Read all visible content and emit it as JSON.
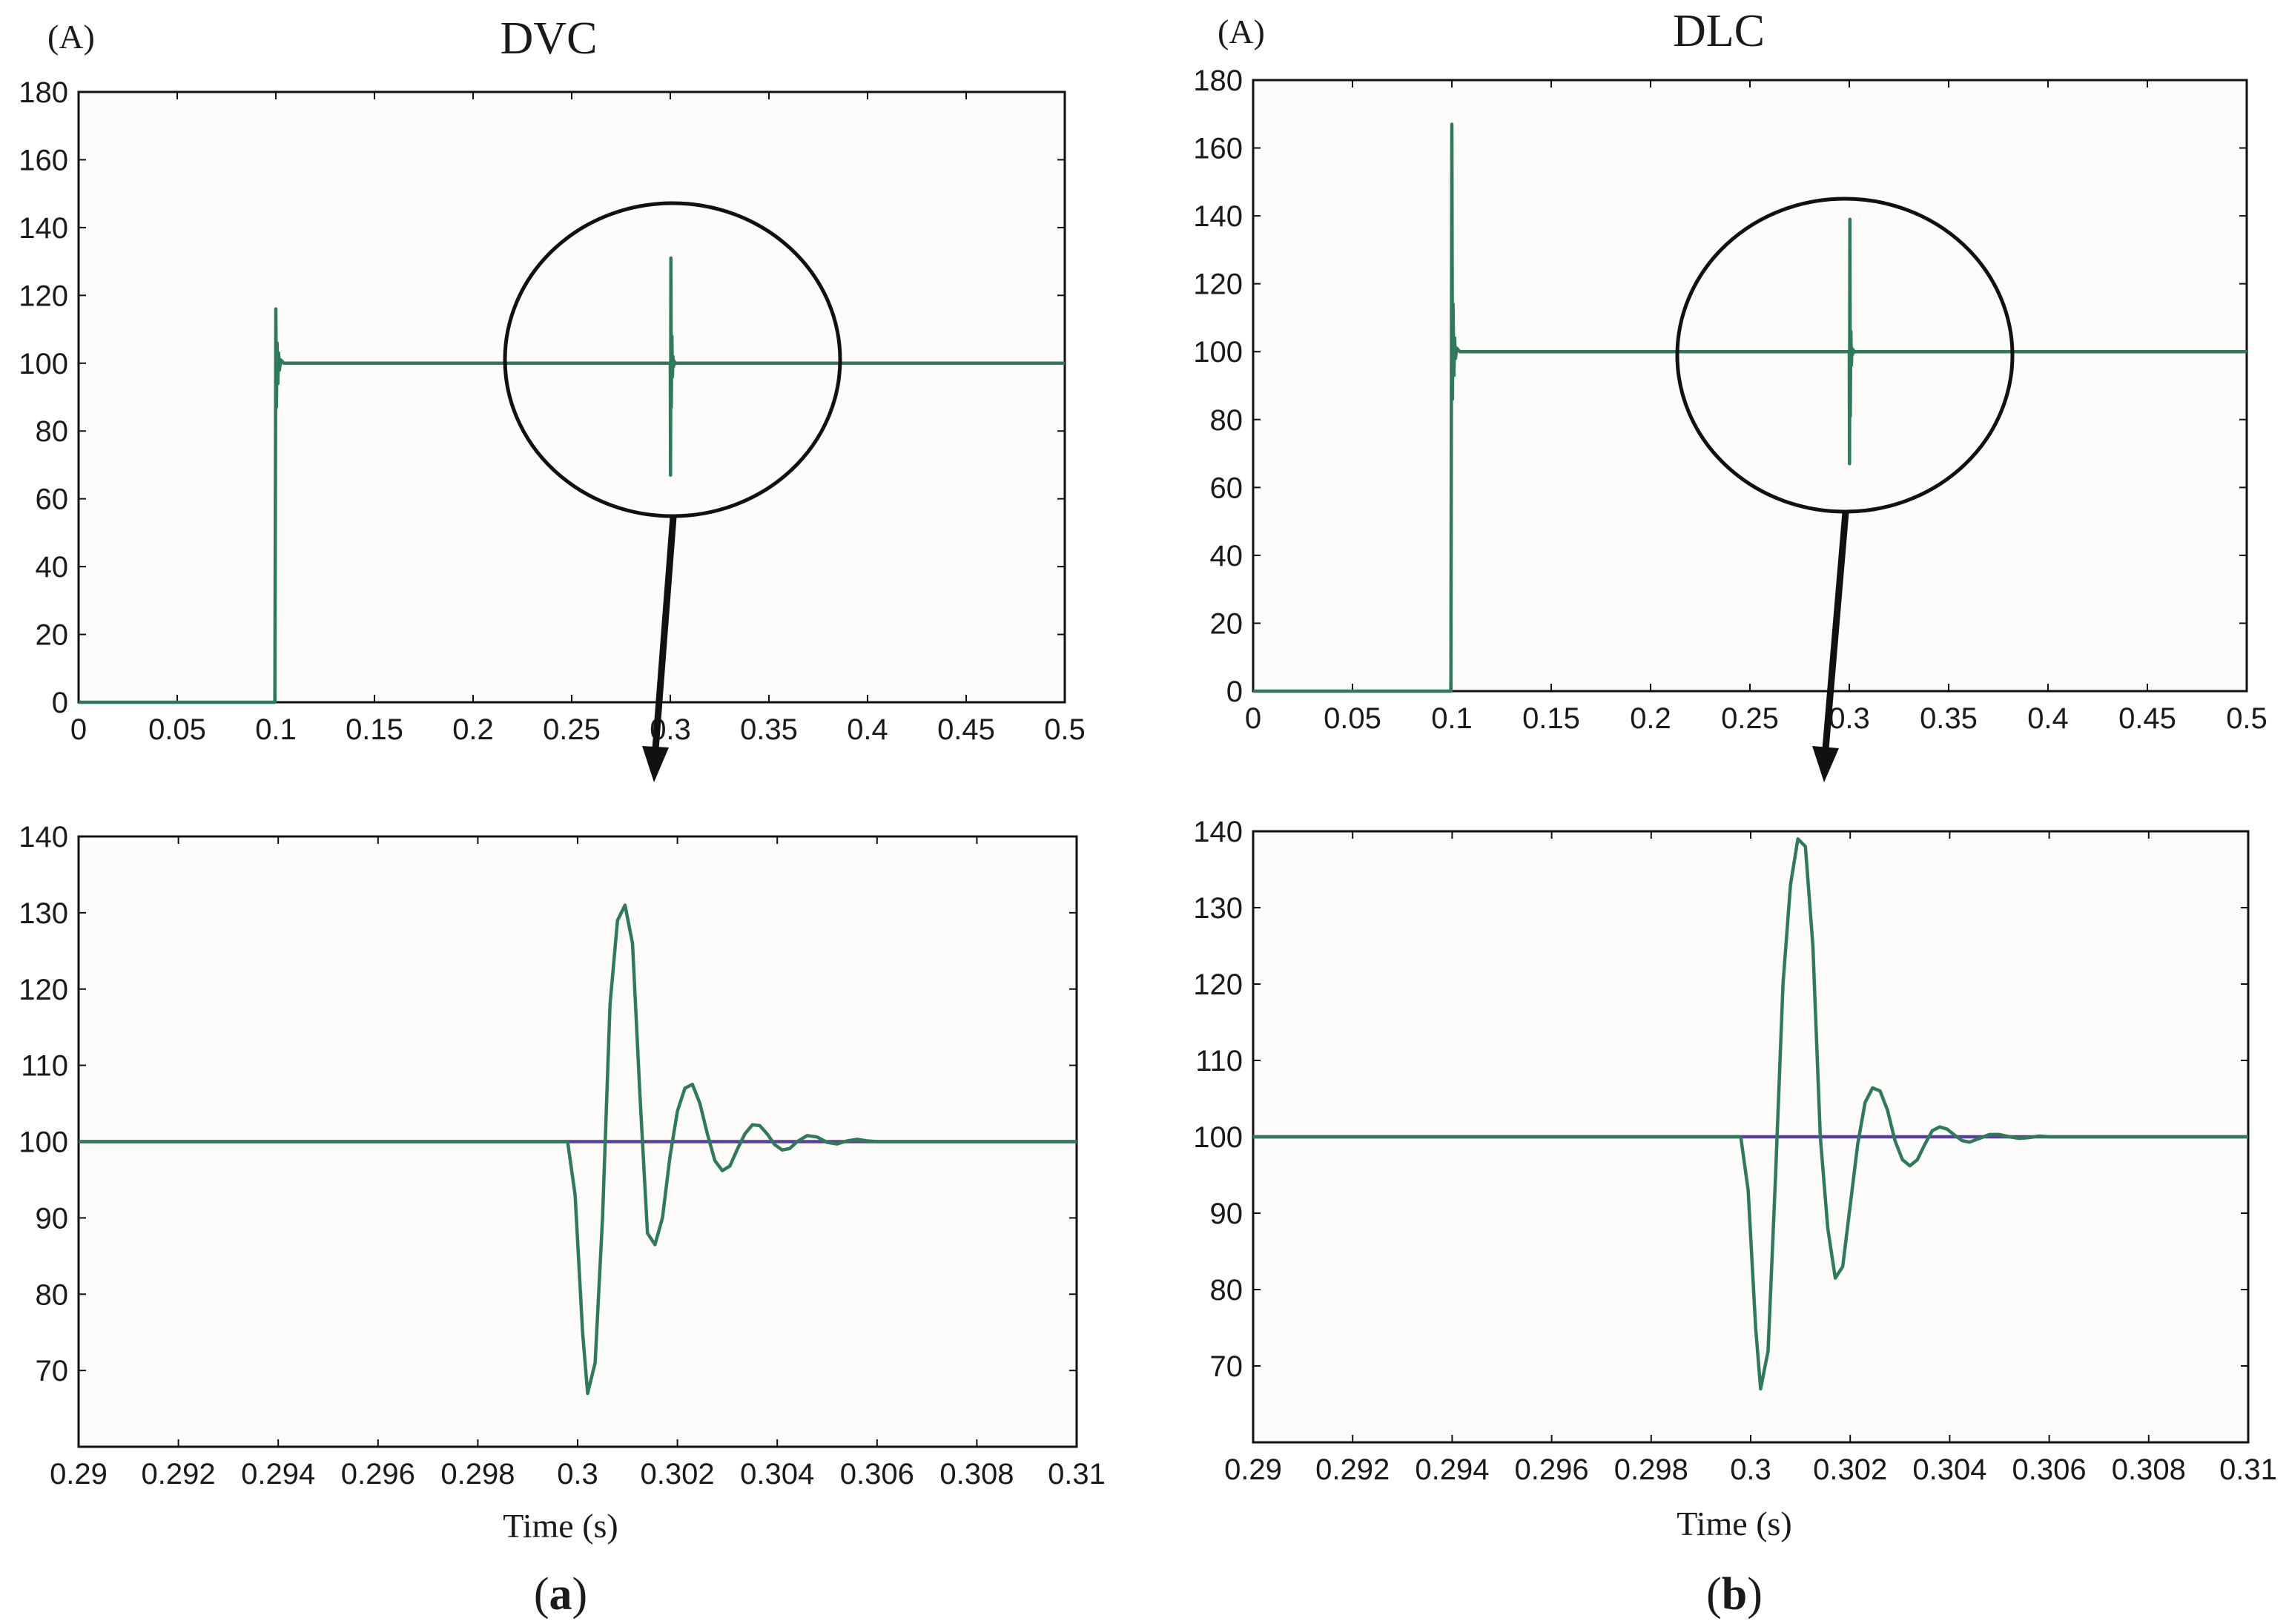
{
  "chart_data": [
    {
      "id": "a-top",
      "type": "line",
      "title": "DVC",
      "unit_label": "(A)",
      "xlabel": "",
      "xlim": [
        0,
        0.5
      ],
      "ylim": [
        0,
        180
      ],
      "xticks": [
        "0",
        "0.05",
        "0.1",
        "0.15",
        "0.2",
        "0.25",
        "0.3",
        "0.35",
        "0.4",
        "0.45",
        "0.5"
      ],
      "yticks": [
        "0",
        "20",
        "40",
        "60",
        "80",
        "100",
        "120",
        "140",
        "160",
        "180"
      ],
      "grid": false,
      "series": [
        {
          "color": "#2f7a58",
          "x": [
            0,
            0.0995,
            0.1,
            0.1003,
            0.1006,
            0.101,
            0.1014,
            0.1018,
            0.1025,
            0.104,
            0.3,
            0.3001,
            0.3003,
            0.3005,
            0.3008,
            0.3011,
            0.3013,
            0.3016,
            0.3019,
            0.3021,
            0.3024,
            0.3027,
            0.303,
            0.3035,
            0.304,
            0.3045,
            0.305,
            0.306,
            0.5
          ],
          "values": [
            0,
            0,
            116,
            87,
            106,
            94,
            103,
            98,
            101,
            100,
            100,
            67,
            131,
            87,
            108,
            96,
            102,
            99,
            100.6,
            99.7,
            100.2,
            99.9,
            100,
            100,
            100,
            100,
            100,
            100,
            100
          ]
        }
      ]
    },
    {
      "id": "a-bottom",
      "type": "line",
      "title": "",
      "xlabel": "Time (s)",
      "xlim": [
        0.29,
        0.31
      ],
      "ylim": [
        60,
        140
      ],
      "xticks": [
        "0.29",
        "0.292",
        "0.294",
        "0.296",
        "0.298",
        "0.3",
        "0.302",
        "0.304",
        "0.306",
        "0.308",
        "0.31"
      ],
      "yticks": [
        "70",
        "80",
        "90",
        "100",
        "110",
        "120",
        "130",
        "140"
      ],
      "grid": false,
      "series": [
        {
          "color": "#5b3fa0",
          "x": [
            0.29,
            0.31
          ],
          "values": [
            100,
            100
          ]
        },
        {
          "color": "#2f7a58",
          "x": [
            0.29,
            0.2998,
            0.29995,
            0.3001,
            0.3002,
            0.30035,
            0.3005,
            0.30065,
            0.3008,
            0.30095,
            0.3011,
            0.30125,
            0.3014,
            0.30155,
            0.3017,
            0.30185,
            0.302,
            0.30215,
            0.3023,
            0.30245,
            0.3026,
            0.30275,
            0.3029,
            0.30305,
            0.3032,
            0.30335,
            0.3035,
            0.30365,
            0.3038,
            0.30395,
            0.3041,
            0.30425,
            0.3044,
            0.3046,
            0.3048,
            0.305,
            0.3052,
            0.3054,
            0.3056,
            0.3058,
            0.306,
            0.31
          ],
          "values": [
            100,
            100,
            93,
            75,
            67,
            71,
            90,
            118,
            129,
            131,
            126,
            106,
            88,
            86.5,
            90,
            98,
            104,
            107,
            107.5,
            105,
            101,
            97.5,
            96.2,
            96.8,
            99,
            101,
            102.2,
            102.1,
            101,
            99.6,
            98.9,
            99.1,
            100,
            100.8,
            100.6,
            99.9,
            99.7,
            100.1,
            100.3,
            100.1,
            100,
            100
          ]
        }
      ]
    },
    {
      "id": "b-top",
      "type": "line",
      "title": "DLC",
      "unit_label": "(A)",
      "xlabel": "",
      "xlim": [
        0,
        0.5
      ],
      "ylim": [
        0,
        180
      ],
      "xticks": [
        "0",
        "0.05",
        "0.1",
        "0.15",
        "0.2",
        "0.25",
        "0.3",
        "0.35",
        "0.4",
        "0.45",
        "0.5"
      ],
      "yticks": [
        "0",
        "20",
        "40",
        "60",
        "80",
        "100",
        "120",
        "140",
        "160",
        "180"
      ],
      "grid": false,
      "series": [
        {
          "color": "#2f7a58",
          "x": [
            0,
            0.0995,
            0.1,
            0.1003,
            0.1006,
            0.101,
            0.1014,
            0.1018,
            0.1025,
            0.104,
            0.3,
            0.3001,
            0.3003,
            0.3005,
            0.3008,
            0.3011,
            0.3013,
            0.3016,
            0.3019,
            0.3021,
            0.3024,
            0.3027,
            0.303,
            0.3035,
            0.304,
            0.3045,
            0.305,
            0.306,
            0.5
          ],
          "values": [
            0,
            0,
            167,
            86,
            114,
            93,
            104,
            98,
            101,
            100,
            100,
            67,
            139,
            81,
            106,
            96,
            101,
            99.2,
            100.5,
            99.8,
            100.2,
            99.9,
            100,
            100,
            100,
            100,
            100,
            100,
            100
          ]
        }
      ]
    },
    {
      "id": "b-bottom",
      "type": "line",
      "title": "",
      "xlabel": "Time (s)",
      "xlim": [
        0.29,
        0.31
      ],
      "ylim": [
        60,
        140
      ],
      "xticks": [
        "0.29",
        "0.292",
        "0.294",
        "0.296",
        "0.298",
        "0.3",
        "0.302",
        "0.304",
        "0.306",
        "0.308",
        "0.31"
      ],
      "yticks": [
        "70",
        "80",
        "90",
        "100",
        "110",
        "120",
        "130",
        "140"
      ],
      "grid": false,
      "series": [
        {
          "color": "#5b3fa0",
          "x": [
            0.29,
            0.31
          ],
          "values": [
            100,
            100
          ]
        },
        {
          "color": "#2f7a58",
          "x": [
            0.29,
            0.2998,
            0.29995,
            0.3001,
            0.3002,
            0.30035,
            0.3005,
            0.30065,
            0.3008,
            0.30095,
            0.3011,
            0.30125,
            0.3014,
            0.30155,
            0.3017,
            0.30185,
            0.302,
            0.30215,
            0.3023,
            0.30245,
            0.3026,
            0.30275,
            0.3029,
            0.30305,
            0.3032,
            0.30335,
            0.3035,
            0.30365,
            0.3038,
            0.30395,
            0.3041,
            0.30425,
            0.3044,
            0.3046,
            0.3048,
            0.305,
            0.3052,
            0.3054,
            0.3056,
            0.3058,
            0.306,
            0.31
          ],
          "values": [
            100,
            100,
            93,
            75,
            67,
            72,
            95,
            120,
            133,
            139,
            138,
            125,
            100,
            88,
            81.5,
            83,
            91,
            99,
            104.5,
            106.4,
            106,
            103.5,
            99.5,
            97,
            96.2,
            97,
            99,
            100.8,
            101.3,
            101,
            100.2,
            99.5,
            99.3,
            99.8,
            100.3,
            100.3,
            100,
            99.8,
            99.9,
            100.1,
            100,
            100
          ]
        }
      ]
    }
  ],
  "figure": {
    "arrow_color": "#111111",
    "circle_color": "#111111",
    "axis_color": "#111111",
    "panel_labels": [
      {
        "open": "(",
        "letter": "a",
        "close": ")"
      },
      {
        "open": "(",
        "letter": "b",
        "close": ")"
      }
    ]
  }
}
